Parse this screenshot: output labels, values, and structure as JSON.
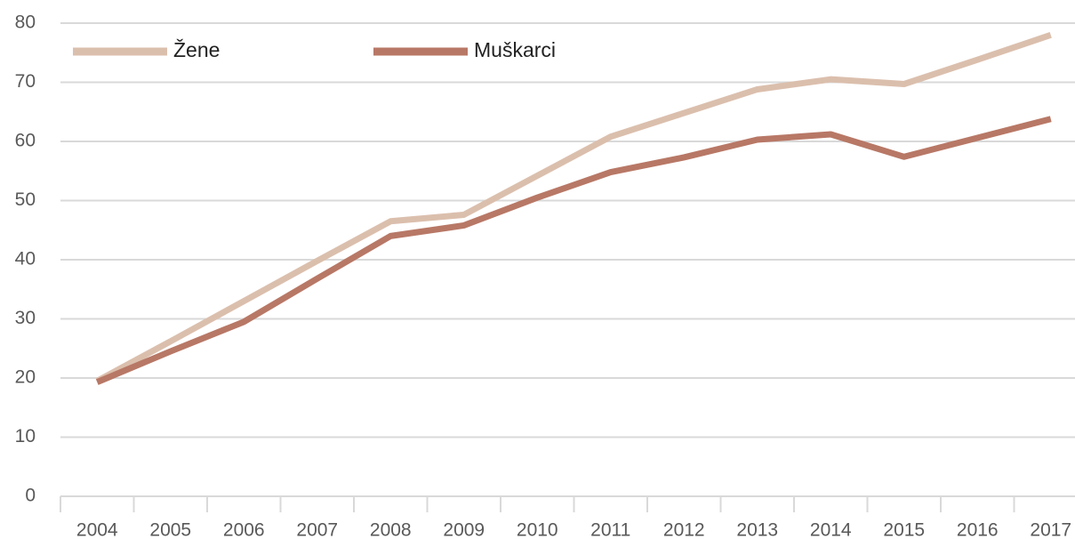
{
  "chart_data": {
    "type": "line",
    "categories": [
      "2004",
      "2005",
      "2006",
      "2007",
      "2008",
      "2009",
      "2010",
      "2011",
      "2012",
      "2013",
      "2014",
      "2015",
      "2016",
      "2017"
    ],
    "series": [
      {
        "name": "Žene",
        "color": "#dbbfad",
        "values": [
          19.5,
          26.2,
          33.0,
          39.8,
          46.5,
          47.6,
          54.2,
          60.8,
          64.8,
          68.8,
          70.5,
          69.7,
          73.8,
          78.0
        ]
      },
      {
        "name": "Muškarci",
        "color": "#b87866",
        "values": [
          19.3,
          24.5,
          29.5,
          36.8,
          44.0,
          45.8,
          50.5,
          54.8,
          57.3,
          60.3,
          61.2,
          57.4,
          60.6,
          63.8
        ]
      }
    ],
    "ylim": [
      0,
      80
    ],
    "yticks": [
      0,
      10,
      20,
      30,
      40,
      50,
      60,
      70,
      80
    ],
    "grid": true,
    "legend": "top-left"
  }
}
